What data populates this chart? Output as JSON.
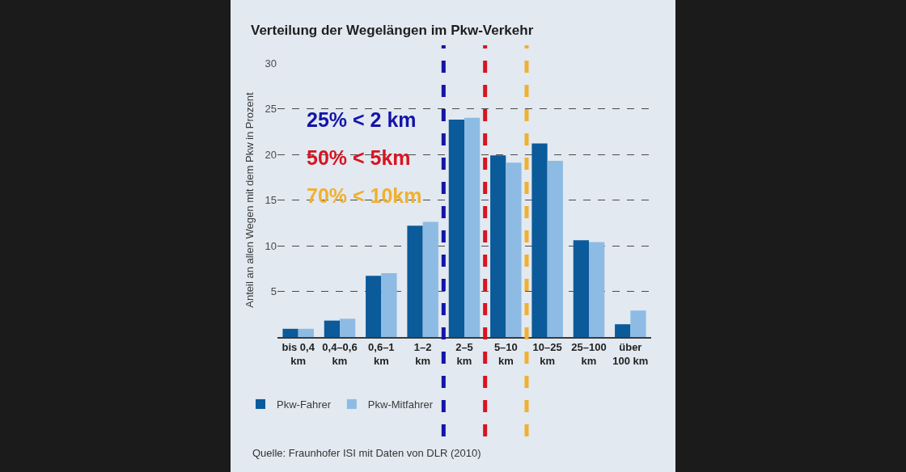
{
  "chart_data": {
    "type": "bar",
    "title": "Verteilung der Wegelängen im Pkw-Verkehr",
    "ylabel": "Anteil an allen Wegen mit dem Pkw in Prozent",
    "categories": [
      "bis 0,4\nkm",
      "0,4–0,6\nkm",
      "0,6–1\nkm",
      "1–2\nkm",
      "2–5\nkm",
      "5–10\nkm",
      "10–25\nkm",
      "25–100\nkm",
      "über\n100 km"
    ],
    "series": [
      {
        "name": "Pkw-Fahrer",
        "color": "#0b5a9a",
        "values": [
          0.9,
          1.8,
          6.7,
          12.2,
          23.8,
          19.9,
          21.2,
          10.6,
          1.4
        ]
      },
      {
        "name": "Pkw-Mitfahrer",
        "color": "#8dbbe4",
        "values": [
          0.9,
          2.0,
          7.0,
          12.6,
          24.0,
          19.1,
          19.3,
          10.4,
          2.9
        ]
      }
    ],
    "ylim": [
      0,
      30
    ],
    "yticks": [
      5,
      10,
      15,
      20,
      25,
      30
    ],
    "grid": "y",
    "legend": "bottom",
    "ref_lines": [
      {
        "axis": "x",
        "value": "1–2\nkm",
        "label": "25% < 2 km",
        "color": "#1414a8",
        "line_style": "dashed"
      },
      {
        "axis": "x",
        "value": "2–5\nkm",
        "label": "50% < 5km",
        "color": "#d81420",
        "line_style": "dashed"
      },
      {
        "axis": "x",
        "value": "5–10\nkm",
        "label": "70% < 10km",
        "color": "#f0b030",
        "line_style": "dashed"
      }
    ],
    "annotations": [
      "Quelle: Fraunhofer ISI mit Daten von DLR (2010)"
    ]
  }
}
